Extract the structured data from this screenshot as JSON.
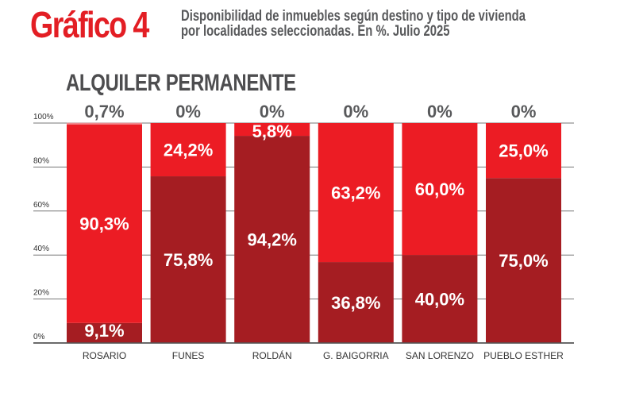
{
  "header": {
    "title": "Gráfico 4",
    "subtitle_line1": "Disponibilidad de inmuebles según destino y tipo de vivienda",
    "subtitle_line2": "por localidades seleccionadas. En %. Julio 2025"
  },
  "chart_data": {
    "type": "bar",
    "stacked": true,
    "title": "ALQUILER PERMANENTE",
    "categories": [
      "ROSARIO",
      "FUNES",
      "ROLDÁN",
      "G. BAIGORRIA",
      "SAN LORENZO",
      "PUEBLO ESTHER"
    ],
    "series": [
      {
        "name": "dark",
        "color": "#a51d22",
        "values": [
          9.1,
          75.8,
          94.2,
          36.8,
          40.0,
          75.0
        ],
        "labels": [
          "9,1%",
          "75,8%",
          "94,2%",
          "36,8%",
          "40,0%",
          "75,0%"
        ]
      },
      {
        "name": "red",
        "color": "#ec1c24",
        "values": [
          90.3,
          24.2,
          5.8,
          63.2,
          60.0,
          25.0
        ],
        "labels": [
          "90,3%",
          "24,2%",
          "5,8%",
          "63,2%",
          "60,0%",
          "25,0%"
        ]
      },
      {
        "name": "light",
        "color": "#f1878c",
        "values": [
          0.7,
          0,
          0,
          0,
          0,
          0
        ],
        "labels": [
          "0,7%",
          "0%",
          "0%",
          "0%",
          "0%",
          "0%"
        ]
      }
    ],
    "yticks": [
      "0%",
      "20%",
      "40%",
      "60%",
      "80%",
      "100%"
    ],
    "ylim": [
      0,
      100
    ],
    "grid": true,
    "legend": "none"
  }
}
